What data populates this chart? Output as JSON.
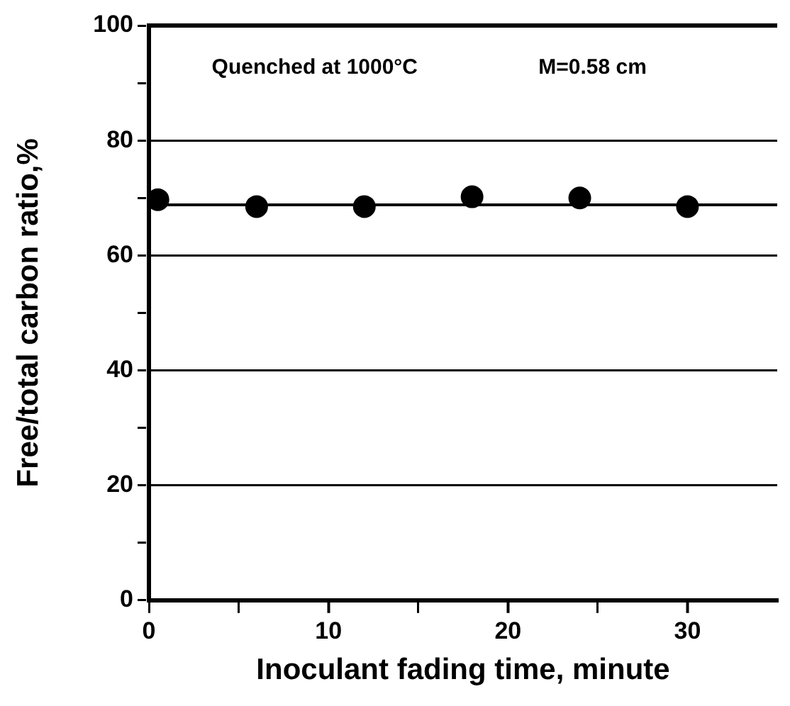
{
  "chart_data": {
    "type": "scatter",
    "xlabel": "Inoculant fading time, minute",
    "ylabel": "Free/total carbon ratio,%",
    "annotations": [
      "Quenched at 1000°C",
      "M=0.58 cm"
    ],
    "xlim": [
      0,
      35
    ],
    "xticks": [
      0,
      {
        "value": 5,
        "label": null
      },
      10,
      {
        "value": 15,
        "label": null
      },
      20,
      {
        "value": 25,
        "label": null
      },
      30
    ],
    "ylim": [
      0,
      100
    ],
    "yticks": [
      0,
      {
        "value": 10,
        "label": null
      },
      20,
      {
        "value": 30,
        "label": null
      },
      40,
      {
        "value": 50,
        "label": null
      },
      60,
      {
        "value": 70,
        "label": null
      },
      80,
      {
        "value": 90,
        "label": null
      },
      100
    ],
    "grid": "y",
    "marker": "circle",
    "legend": false,
    "series": [
      {
        "type": "scatter",
        "color": "#000000",
        "x": [
          0.5,
          6,
          12,
          18,
          24,
          30
        ],
        "values": [
          69.7,
          68.5,
          68.5,
          70.2,
          70,
          68.5
        ]
      },
      {
        "type": "line",
        "color": "#000000",
        "x": [
          0,
          35
        ],
        "values": [
          68.8,
          68.8
        ],
        "marker": "none",
        "line_style": "solid"
      }
    ]
  }
}
